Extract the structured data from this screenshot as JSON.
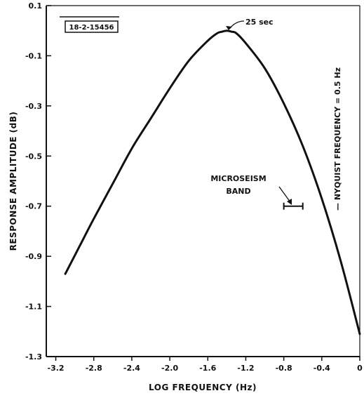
{
  "figure_id": "18-2-15456",
  "chart_data": {
    "type": "line",
    "xlabel": "LOG FREQUENCY (Hz)",
    "ylabel": "RESPONSE AMPLITUDE (dB)",
    "xlim": [
      -3.3,
      0
    ],
    "ylim": [
      -1.3,
      0.1
    ],
    "x_ticks": [
      -3.2,
      -2.8,
      -2.4,
      -2.0,
      -1.6,
      -1.2,
      -0.8,
      -0.4,
      0
    ],
    "x_tick_labels": [
      "-3.2",
      "-2.8",
      "-2.4",
      "-2.0",
      "-1.6",
      "-1.2",
      "-0.8",
      "-0.4",
      "0"
    ],
    "y_ticks": [
      0.1,
      -0.1,
      -0.3,
      -0.5,
      -0.7,
      -0.9,
      -1.1,
      -1.3
    ],
    "y_tick_labels": [
      "0.1",
      "-0.1",
      "-0.3",
      "-0.5",
      "-0.7",
      "-0.9",
      "-1.1",
      "-1.3"
    ],
    "grid": false,
    "series": [
      {
        "x": [
          -3.1,
          -2.95,
          -2.8,
          -2.6,
          -2.4,
          -2.2,
          -2.0,
          -1.8,
          -1.6,
          -1.5,
          -1.45,
          -1.4,
          -1.35,
          -1.3,
          -1.2,
          -1.0,
          -0.8,
          -0.6,
          -0.4,
          -0.2,
          0.0
        ],
        "y": [
          -0.97,
          -0.86,
          -0.75,
          -0.61,
          -0.47,
          -0.35,
          -0.23,
          -0.12,
          -0.04,
          -0.01,
          -0.004,
          0.0,
          -0.004,
          -0.01,
          -0.05,
          -0.15,
          -0.29,
          -0.46,
          -0.67,
          -0.92,
          -1.21
        ]
      }
    ],
    "annotations": [
      {
        "text": "25 sec",
        "x": -1.4,
        "y": 0.0
      },
      {
        "text": "MICROSEISM",
        "x": -0.93,
        "y": -0.59
      },
      {
        "text": "BAND",
        "x": -0.93,
        "y": -0.63
      },
      {
        "text": "— NYQUIST FREQUENCY = 0.5 Hz",
        "x": -0.26,
        "y": -0.3
      }
    ],
    "microseism_band": {
      "x_range": [
        -0.8,
        -0.6
      ],
      "y": -0.7
    }
  }
}
